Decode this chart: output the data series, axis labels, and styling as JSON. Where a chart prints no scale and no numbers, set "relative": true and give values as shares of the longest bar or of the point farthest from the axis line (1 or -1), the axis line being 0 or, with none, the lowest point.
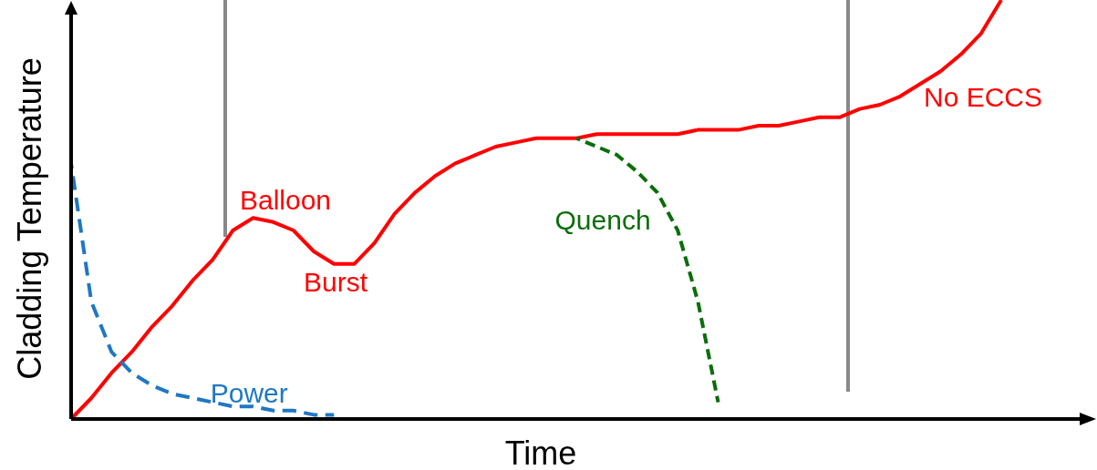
{
  "chart_data": {
    "type": "line",
    "xlabel": "Time",
    "ylabel": "Cladding Temperature",
    "relative": true,
    "marker": "none",
    "categories": [
      null,
      null,
      null,
      null,
      null,
      null,
      null,
      null,
      null,
      null,
      null,
      null,
      null,
      null,
      null,
      null,
      null,
      null,
      null,
      null,
      null,
      null,
      null,
      null,
      null,
      null,
      null,
      null,
      null,
      null,
      null,
      null,
      null,
      null,
      null,
      null,
      null,
      null,
      null,
      null,
      null,
      null,
      null,
      null,
      null,
      null,
      null,
      null,
      null,
      null,
      null,
      null
    ],
    "series": [
      {
        "name": "No ECCS",
        "color": "#ff0000",
        "line_style": "solid",
        "values": [
          0,
          0.05,
          0.11,
          0.16,
          0.22,
          0.27,
          0.33,
          0.38,
          0.45,
          0.48,
          0.47,
          0.45,
          0.4,
          0.37,
          0.37,
          0.42,
          0.49,
          0.54,
          0.58,
          0.61,
          0.63,
          0.65,
          0.66,
          0.67,
          0.67,
          0.67,
          0.68,
          0.68,
          0.68,
          0.68,
          0.68,
          0.69,
          0.69,
          0.69,
          0.7,
          0.7,
          0.71,
          0.72,
          0.72,
          0.74,
          0.75,
          0.77,
          0.8,
          0.83,
          0.87,
          0.92,
          1,
          null,
          null,
          null,
          null,
          null
        ]
      },
      {
        "name": "Quench",
        "color": "#0a6e0a",
        "line_style": "dashed",
        "values": [
          null,
          null,
          null,
          null,
          null,
          null,
          null,
          null,
          null,
          null,
          null,
          null,
          null,
          null,
          null,
          null,
          null,
          null,
          null,
          null,
          null,
          null,
          null,
          null,
          null,
          0.67,
          0.65,
          0.63,
          0.59,
          0.54,
          0.45,
          0.28,
          0.04,
          null,
          null,
          null,
          null,
          null,
          null,
          null,
          null,
          null,
          null,
          null,
          null,
          null,
          null,
          null,
          null,
          null,
          null,
          null
        ]
      },
      {
        "name": "Power",
        "color": "#1f77c4",
        "line_style": "dashed",
        "values": [
          0.61,
          0.28,
          0.16,
          0.11,
          0.08,
          0.06,
          0.05,
          0.04,
          0.03,
          0.03,
          0.02,
          0.02,
          0.01,
          0.01,
          null,
          null,
          null,
          null,
          null,
          null,
          null,
          null,
          null,
          null,
          null,
          null,
          null,
          null,
          null,
          null,
          null,
          null,
          null,
          null,
          null,
          null,
          null,
          null,
          null,
          null,
          null,
          null,
          null,
          null,
          null,
          null,
          null,
          null,
          null,
          null,
          null,
          null
        ]
      }
    ],
    "annotations": [
      "Balloon",
      "Burst"
    ]
  }
}
